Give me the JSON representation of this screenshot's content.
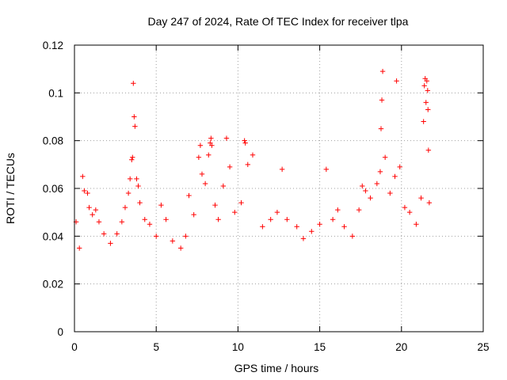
{
  "chart_data": {
    "type": "scatter",
    "title": "Day 247 of 2024, Rate Of TEC Index for receiver tlpa",
    "xlabel": "GPS time / hours",
    "ylabel": "ROTI / TECUs",
    "xlim": [
      0,
      25
    ],
    "ylim": [
      0,
      0.12
    ],
    "xticks": [
      "0",
      "5",
      "10",
      "15",
      "20",
      "25"
    ],
    "yticks": [
      "0",
      "0.02",
      "0.04",
      "0.06",
      "0.08",
      "0.1",
      "0.12"
    ],
    "grid": true,
    "marker": "plus",
    "color": "#ff0000",
    "series": [
      {
        "points": [
          [
            0.1,
            0.046
          ],
          [
            0.3,
            0.035
          ],
          [
            0.5,
            0.065
          ],
          [
            0.6,
            0.059
          ],
          [
            0.8,
            0.058
          ],
          [
            0.9,
            0.052
          ],
          [
            1.1,
            0.049
          ],
          [
            1.3,
            0.051
          ],
          [
            1.5,
            0.046
          ],
          [
            1.8,
            0.041
          ],
          [
            2.2,
            0.037
          ],
          [
            2.6,
            0.041
          ],
          [
            2.9,
            0.046
          ],
          [
            3.1,
            0.052
          ],
          [
            3.3,
            0.058
          ],
          [
            3.4,
            0.064
          ],
          [
            3.5,
            0.072
          ],
          [
            3.55,
            0.073
          ],
          [
            3.6,
            0.104
          ],
          [
            3.65,
            0.09
          ],
          [
            3.7,
            0.086
          ],
          [
            3.8,
            0.064
          ],
          [
            3.9,
            0.061
          ],
          [
            4.0,
            0.054
          ],
          [
            4.3,
            0.047
          ],
          [
            4.6,
            0.045
          ],
          [
            5.0,
            0.04
          ],
          [
            5.3,
            0.053
          ],
          [
            5.6,
            0.047
          ],
          [
            6.0,
            0.038
          ],
          [
            6.5,
            0.035
          ],
          [
            6.8,
            0.04
          ],
          [
            7.0,
            0.057
          ],
          [
            7.3,
            0.049
          ],
          [
            7.6,
            0.073
          ],
          [
            7.7,
            0.078
          ],
          [
            7.8,
            0.066
          ],
          [
            8.0,
            0.062
          ],
          [
            8.2,
            0.074
          ],
          [
            8.3,
            0.079
          ],
          [
            8.35,
            0.081
          ],
          [
            8.4,
            0.078
          ],
          [
            8.6,
            0.053
          ],
          [
            8.8,
            0.047
          ],
          [
            9.1,
            0.061
          ],
          [
            9.3,
            0.081
          ],
          [
            9.5,
            0.069
          ],
          [
            9.8,
            0.05
          ],
          [
            10.2,
            0.054
          ],
          [
            10.4,
            0.08
          ],
          [
            10.45,
            0.079
          ],
          [
            10.6,
            0.07
          ],
          [
            10.9,
            0.074
          ],
          [
            11.5,
            0.044
          ],
          [
            12.0,
            0.047
          ],
          [
            12.4,
            0.05
          ],
          [
            12.7,
            0.068
          ],
          [
            13.0,
            0.047
          ],
          [
            13.6,
            0.044
          ],
          [
            14.0,
            0.039
          ],
          [
            14.5,
            0.042
          ],
          [
            15.0,
            0.045
          ],
          [
            15.4,
            0.068
          ],
          [
            15.8,
            0.047
          ],
          [
            16.1,
            0.051
          ],
          [
            16.5,
            0.044
          ],
          [
            17.0,
            0.04
          ],
          [
            17.4,
            0.051
          ],
          [
            17.6,
            0.061
          ],
          [
            17.8,
            0.059
          ],
          [
            18.1,
            0.056
          ],
          [
            18.5,
            0.062
          ],
          [
            18.7,
            0.067
          ],
          [
            18.75,
            0.085
          ],
          [
            18.8,
            0.097
          ],
          [
            18.85,
            0.109
          ],
          [
            19.0,
            0.073
          ],
          [
            19.3,
            0.058
          ],
          [
            19.6,
            0.065
          ],
          [
            19.7,
            0.105
          ],
          [
            19.9,
            0.069
          ],
          [
            20.2,
            0.052
          ],
          [
            20.5,
            0.05
          ],
          [
            20.9,
            0.045
          ],
          [
            21.2,
            0.056
          ],
          [
            21.35,
            0.088
          ],
          [
            21.4,
            0.103
          ],
          [
            21.45,
            0.106
          ],
          [
            21.5,
            0.096
          ],
          [
            21.55,
            0.105
          ],
          [
            21.6,
            0.101
          ],
          [
            21.62,
            0.093
          ],
          [
            21.65,
            0.076
          ],
          [
            21.7,
            0.054
          ]
        ]
      }
    ]
  }
}
